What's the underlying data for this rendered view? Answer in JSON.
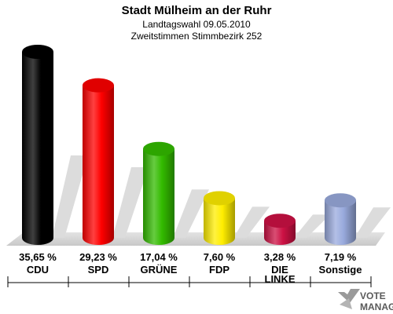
{
  "chart_data": {
    "type": "bar",
    "title": "Stadt Mülheim an der Ruhr",
    "subtitle_1": "Landtagswahl 09.05.2010",
    "subtitle_2": "Zweitstimmen Stimmbezirk 252",
    "categories": [
      "CDU",
      "SPD",
      "GRÜNE",
      "FDP",
      "DIE LINKE",
      "Sonstige"
    ],
    "values": [
      35.65,
      29.23,
      17.04,
      7.6,
      3.28,
      7.19
    ],
    "value_labels": [
      "35,65 %",
      "29,23 %",
      "17,04 %",
      "7,60 %",
      "3,28 %",
      "7,19 %"
    ],
    "colors": [
      "#000000",
      "#ff0000",
      "#33bb00",
      "#ffee00",
      "#cc1144",
      "#99aadd"
    ],
    "ylim": [
      0,
      35.65
    ],
    "grid": false,
    "legend": "none"
  },
  "watermark": {
    "line1": "VOTE",
    "line2": "MANAGER"
  }
}
